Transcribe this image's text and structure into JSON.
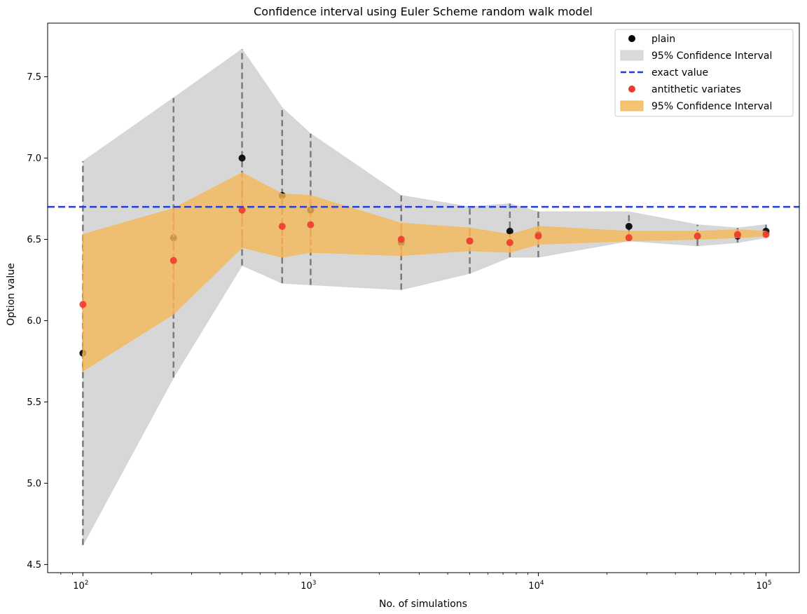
{
  "chart_data": {
    "type": "scatter",
    "title": "Confidence interval using Euler Scheme random walk model",
    "xlabel": "No. of simulations",
    "ylabel": "Option value",
    "xscale": "log",
    "xlim": [
      70,
      140000
    ],
    "ylim": [
      4.45,
      7.83
    ],
    "yticks": [
      4.5,
      5.0,
      5.5,
      6.0,
      6.5,
      7.0,
      7.5
    ],
    "ytick_labels": [
      "4.5",
      "5.0",
      "5.5",
      "6.0",
      "6.5",
      "7.0",
      "7.5"
    ],
    "xticks": [
      100,
      1000,
      10000,
      100000
    ],
    "xtick_labels": [
      {
        "base": "10",
        "exp": "2"
      },
      {
        "base": "10",
        "exp": "3"
      },
      {
        "base": "10",
        "exp": "4"
      },
      {
        "base": "10",
        "exp": "5"
      }
    ],
    "grid": false,
    "legend_position": "top-right",
    "x": [
      100,
      250,
      500,
      750,
      1000,
      2500,
      5000,
      7500,
      10000,
      25000,
      50000,
      75000,
      100000
    ],
    "series": [
      {
        "name": "plain",
        "color": "#000000",
        "values": [
          5.8,
          6.51,
          7.0,
          6.77,
          6.68,
          6.48,
          6.49,
          6.55,
          6.53,
          6.58,
          6.52,
          6.52,
          6.55
        ],
        "ci_lower": [
          4.62,
          5.65,
          6.34,
          6.23,
          6.22,
          6.19,
          6.29,
          6.39,
          6.39,
          6.49,
          6.46,
          6.48,
          6.51
        ],
        "ci_upper": [
          6.98,
          7.37,
          7.67,
          7.31,
          7.15,
          6.77,
          6.7,
          6.72,
          6.67,
          6.67,
          6.59,
          6.57,
          6.59
        ],
        "ci_name": "95% Confidence Interval",
        "ci_color": "#d3d3d3"
      },
      {
        "name": "antithetic variates",
        "color": "#ee3a2c",
        "values": [
          6.1,
          6.37,
          6.68,
          6.58,
          6.59,
          6.5,
          6.49,
          6.48,
          6.52,
          6.51,
          6.52,
          6.53,
          6.53
        ],
        "ci_lower": [
          5.69,
          6.04,
          6.45,
          6.39,
          6.42,
          6.4,
          6.43,
          6.42,
          6.47,
          6.49,
          6.5,
          6.51,
          6.52
        ],
        "ci_upper": [
          6.53,
          6.69,
          6.91,
          6.78,
          6.77,
          6.6,
          6.57,
          6.53,
          6.58,
          6.55,
          6.55,
          6.56,
          6.55
        ],
        "ci_name": "95% Confidence Interval",
        "ci_color": "#f4b95a"
      }
    ],
    "exact_value": {
      "name": "exact value",
      "value": 6.7,
      "color": "#1f3fe0"
    }
  }
}
